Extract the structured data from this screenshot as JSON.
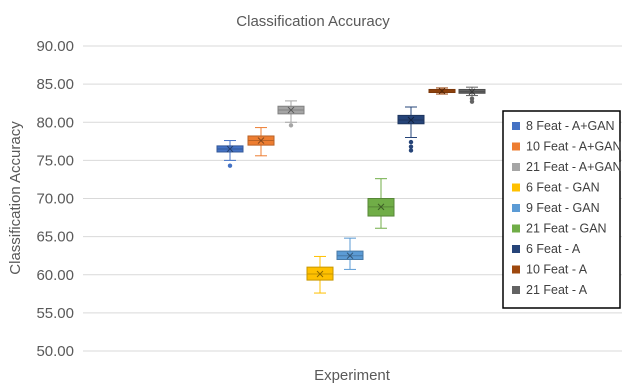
{
  "chart_data": {
    "type": "box",
    "title": "Classification Accuracy",
    "xlabel": "Experiment",
    "ylabel": "Classification Accuracy",
    "ylim": [
      50,
      90
    ],
    "yticks": [
      "50.00",
      "55.00",
      "60.00",
      "65.00",
      "70.00",
      "75.00",
      "80.00",
      "85.00",
      "90.00"
    ],
    "grid": true,
    "legend_position": "right",
    "series": [
      {
        "name": "8 Feat - A+GAN",
        "color": "#4472c4",
        "min": 75.0,
        "q1": 76.1,
        "median": 76.5,
        "mean": 76.5,
        "q3": 76.9,
        "max": 77.6,
        "outliers": [
          74.3
        ]
      },
      {
        "name": "10 Feat - A+GAN",
        "color": "#ed7d31",
        "min": 75.6,
        "q1": 77.0,
        "median": 77.6,
        "mean": 77.6,
        "q3": 78.2,
        "max": 79.3,
        "outliers": []
      },
      {
        "name": "21 Feat - A+GAN",
        "color": "#a5a5a5",
        "min": 80.0,
        "q1": 81.1,
        "median": 81.6,
        "mean": 81.6,
        "q3": 82.1,
        "max": 82.8,
        "outliers": [
          79.6
        ]
      },
      {
        "name": "6 Feat - GAN",
        "color": "#ffc000",
        "min": 57.6,
        "q1": 59.3,
        "median": 60.1,
        "mean": 60.1,
        "q3": 61.0,
        "max": 62.4,
        "outliers": []
      },
      {
        "name": "9 Feat - GAN",
        "color": "#5b9bd5",
        "min": 60.7,
        "q1": 62.0,
        "median": 62.5,
        "mean": 62.5,
        "q3": 63.1,
        "max": 64.8,
        "outliers": []
      },
      {
        "name": "21 Feat - GAN",
        "color": "#70ad47",
        "min": 66.1,
        "q1": 67.7,
        "median": 68.9,
        "mean": 68.9,
        "q3": 70.0,
        "max": 72.6,
        "outliers": []
      },
      {
        "name": "6 Feat - A",
        "color": "#264478",
        "min": 78.0,
        "q1": 79.8,
        "median": 80.3,
        "mean": 80.3,
        "q3": 80.9,
        "max": 82.0,
        "outliers": [
          77.4,
          76.8,
          76.3
        ]
      },
      {
        "name": "10 Feat - A",
        "color": "#9e480e",
        "min": 83.7,
        "q1": 83.9,
        "median": 84.1,
        "mean": 84.1,
        "q3": 84.3,
        "max": 84.5,
        "outliers": []
      },
      {
        "name": "21 Feat - A",
        "color": "#636363",
        "min": 83.5,
        "q1": 83.8,
        "median": 84.0,
        "mean": 84.0,
        "q3": 84.3,
        "max": 84.6,
        "outliers": [
          83.1,
          82.7
        ]
      }
    ]
  }
}
